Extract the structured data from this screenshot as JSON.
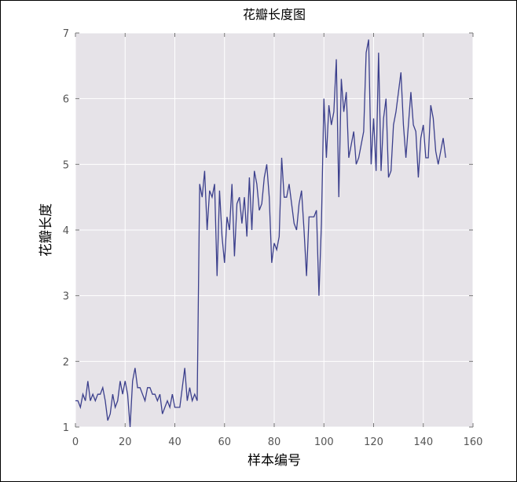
{
  "chart_data": {
    "type": "line",
    "title": "花瓣长度图",
    "xlabel": "样本编号",
    "ylabel": "花瓣长度",
    "xlim": [
      0,
      160
    ],
    "ylim": [
      1,
      7
    ],
    "xticks": [
      0,
      20,
      40,
      60,
      80,
      100,
      120,
      140,
      160
    ],
    "yticks": [
      1,
      2,
      3,
      4,
      5,
      6,
      7
    ],
    "grid": true,
    "background": "#e6e3e8",
    "line_color": "#3b3f8c",
    "series": [
      {
        "values": [
          1.4,
          1.4,
          1.3,
          1.5,
          1.4,
          1.7,
          1.4,
          1.5,
          1.4,
          1.5,
          1.5,
          1.6,
          1.4,
          1.1,
          1.2,
          1.5,
          1.3,
          1.4,
          1.7,
          1.5,
          1.7,
          1.5,
          1.0,
          1.7,
          1.9,
          1.6,
          1.6,
          1.5,
          1.4,
          1.6,
          1.6,
          1.5,
          1.5,
          1.4,
          1.5,
          1.2,
          1.3,
          1.4,
          1.3,
          1.5,
          1.3,
          1.3,
          1.3,
          1.6,
          1.9,
          1.4,
          1.6,
          1.4,
          1.5,
          1.4,
          4.7,
          4.5,
          4.9,
          4.0,
          4.6,
          4.5,
          4.7,
          3.3,
          4.6,
          3.9,
          3.5,
          4.2,
          4.0,
          4.7,
          3.6,
          4.4,
          4.5,
          4.1,
          4.5,
          3.9,
          4.8,
          4.0,
          4.9,
          4.7,
          4.3,
          4.4,
          4.8,
          5.0,
          4.5,
          3.5,
          3.8,
          3.7,
          3.9,
          5.1,
          4.5,
          4.5,
          4.7,
          4.4,
          4.1,
          4.0,
          4.4,
          4.6,
          4.0,
          3.3,
          4.2,
          4.2,
          4.2,
          4.3,
          3.0,
          4.1,
          6.0,
          5.1,
          5.9,
          5.6,
          5.8,
          6.6,
          4.5,
          6.3,
          5.8,
          6.1,
          5.1,
          5.3,
          5.5,
          5.0,
          5.1,
          5.3,
          5.5,
          6.7,
          6.9,
          5.0,
          5.7,
          4.9,
          6.7,
          4.9,
          5.7,
          6.0,
          4.8,
          4.9,
          5.6,
          5.8,
          6.1,
          6.4,
          5.6,
          5.1,
          5.6,
          6.1,
          5.6,
          5.5,
          4.8,
          5.4,
          5.6,
          5.1,
          5.1,
          5.9,
          5.7,
          5.2,
          5.0,
          5.2,
          5.4,
          5.1
        ]
      }
    ]
  }
}
